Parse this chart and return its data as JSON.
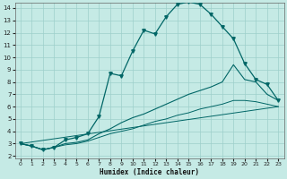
{
  "xlabel": "Humidex (Indice chaleur)",
  "bg_color": "#c5eae5",
  "grid_color": "#9dcfcb",
  "line_color": "#006666",
  "xlim_min": -0.5,
  "xlim_max": 23.5,
  "ylim_min": 1.8,
  "ylim_max": 14.4,
  "xticks": [
    0,
    1,
    2,
    3,
    4,
    5,
    6,
    7,
    8,
    9,
    10,
    11,
    12,
    13,
    14,
    15,
    16,
    17,
    18,
    19,
    20,
    21,
    22,
    23
  ],
  "yticks": [
    2,
    3,
    4,
    5,
    6,
    7,
    8,
    9,
    10,
    11,
    12,
    13,
    14
  ],
  "curve_main_x": [
    0,
    1,
    2,
    3,
    4,
    5,
    6,
    7,
    8,
    9,
    10,
    11,
    12,
    13,
    14,
    15,
    16,
    17,
    18,
    19,
    20,
    21,
    22,
    23
  ],
  "curve_main_y": [
    3.0,
    2.8,
    2.5,
    2.7,
    3.3,
    3.5,
    3.8,
    5.2,
    8.7,
    8.5,
    10.5,
    12.2,
    11.9,
    13.3,
    14.3,
    14.5,
    14.3,
    13.5,
    12.5,
    11.5,
    9.5,
    8.2,
    7.8,
    6.5
  ],
  "curve2_x": [
    0,
    1,
    2,
    3,
    4,
    5,
    6,
    7,
    8,
    9,
    10,
    11,
    12,
    13,
    14,
    15,
    16,
    17,
    18,
    19,
    20,
    21,
    22,
    23
  ],
  "curve2_y": [
    3.0,
    2.8,
    2.5,
    2.7,
    3.0,
    3.1,
    3.3,
    3.8,
    4.2,
    4.7,
    5.1,
    5.4,
    5.8,
    6.2,
    6.6,
    7.0,
    7.3,
    7.6,
    8.0,
    9.4,
    8.2,
    8.0,
    7.0,
    6.5
  ],
  "curve3_x": [
    0,
    1,
    2,
    3,
    4,
    5,
    6,
    7,
    8,
    9,
    10,
    11,
    12,
    13,
    14,
    15,
    16,
    17,
    18,
    19,
    20,
    21,
    22,
    23
  ],
  "curve3_y": [
    3.0,
    2.8,
    2.5,
    2.7,
    2.9,
    3.0,
    3.2,
    3.5,
    3.8,
    4.0,
    4.2,
    4.5,
    4.8,
    5.0,
    5.3,
    5.5,
    5.8,
    6.0,
    6.2,
    6.5,
    6.5,
    6.4,
    6.2,
    6.0
  ],
  "curve4_x": [
    0,
    23
  ],
  "curve4_y": [
    3.0,
    6.0
  ]
}
